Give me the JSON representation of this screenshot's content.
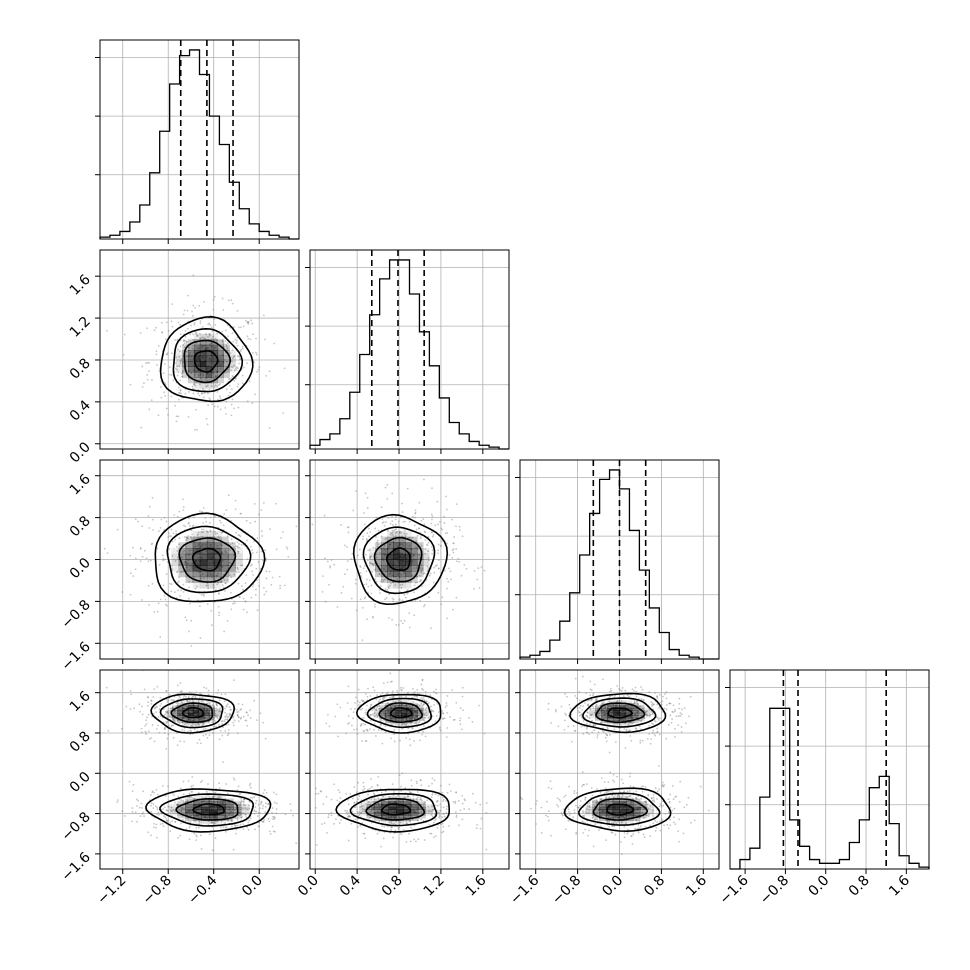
{
  "chart_data": {
    "type": "corner",
    "parameters": [
      {
        "index": 0,
        "range": [
          -1.4,
          0.35
        ],
        "quantiles": [
          -0.69,
          -0.46,
          -0.23
        ],
        "ticks": [
          -1.2,
          -0.8,
          -0.4,
          0.0
        ],
        "tick_labels": [
          "−1.2",
          "−0.8",
          "−0.4",
          "0.0"
        ]
      },
      {
        "index": 1,
        "range": [
          -0.05,
          1.85
        ],
        "quantiles": [
          0.54,
          0.79,
          1.04
        ],
        "ticks": [
          0.0,
          0.4,
          0.8,
          1.2,
          1.6
        ],
        "tick_labels": [
          "0.0",
          "0.4",
          "0.8",
          "1.2",
          "1.6"
        ]
      },
      {
        "index": 2,
        "range": [
          -1.9,
          1.9
        ],
        "quantiles": [
          -0.5,
          0.0,
          0.5
        ],
        "ticks": [
          -1.6,
          -0.8,
          0.0,
          0.8,
          1.6
        ],
        "tick_labels": [
          "−1.6",
          "−0.8",
          "0.0",
          "0.8",
          "1.6"
        ]
      },
      {
        "index": 3,
        "range": [
          -1.9,
          2.05
        ],
        "quantiles": [
          -0.84,
          -0.55,
          1.2
        ],
        "ticks": [
          -1.6,
          -0.8,
          0.0,
          0.8,
          1.6
        ],
        "tick_labels": [
          "−1.6",
          "−0.8",
          "0.0",
          "0.8",
          "1.6"
        ]
      }
    ],
    "histograms": [
      {
        "param": 0,
        "bins": 20,
        "counts": [
          0.01,
          0.02,
          0.04,
          0.09,
          0.18,
          0.35,
          0.57,
          0.82,
          0.97,
          1.0,
          0.87,
          0.65,
          0.5,
          0.3,
          0.16,
          0.08,
          0.04,
          0.02,
          0.01,
          0.0
        ]
      },
      {
        "param": 1,
        "bins": 20,
        "counts": [
          0.02,
          0.05,
          0.08,
          0.16,
          0.3,
          0.5,
          0.71,
          0.9,
          1.0,
          1.0,
          0.82,
          0.62,
          0.44,
          0.27,
          0.14,
          0.08,
          0.04,
          0.02,
          0.01,
          0.0
        ]
      },
      {
        "param": 2,
        "bins": 20,
        "counts": [
          0.01,
          0.02,
          0.04,
          0.1,
          0.2,
          0.35,
          0.55,
          0.77,
          0.95,
          1.0,
          0.9,
          0.68,
          0.47,
          0.27,
          0.14,
          0.05,
          0.02,
          0.01,
          0.0,
          0.0
        ]
      },
      {
        "param": 3,
        "bins": 20,
        "counts": [
          0.0,
          0.05,
          0.11,
          0.38,
          0.85,
          0.85,
          0.26,
          0.12,
          0.05,
          0.03,
          0.03,
          0.05,
          0.14,
          0.26,
          0.43,
          0.49,
          0.24,
          0.07,
          0.03,
          0.01
        ]
      }
    ],
    "pairs": [
      {
        "x": 0,
        "y": 1,
        "blobs": [
          {
            "cx": -0.47,
            "cy": 0.79,
            "sx": 0.2,
            "sy": 0.2
          }
        ]
      },
      {
        "x": 0,
        "y": 2,
        "blobs": [
          {
            "cx": -0.46,
            "cy": 0.0,
            "sx": 0.24,
            "sy": 0.42
          }
        ]
      },
      {
        "x": 1,
        "y": 2,
        "blobs": [
          {
            "cx": 0.8,
            "cy": 0.0,
            "sx": 0.22,
            "sy": 0.42
          }
        ]
      },
      {
        "x": 0,
        "y": 3,
        "blobs": [
          {
            "cx": -0.58,
            "cy": 1.2,
            "sx": 0.18,
            "sy": 0.19
          },
          {
            "cx": -0.44,
            "cy": -0.72,
            "sx": 0.27,
            "sy": 0.21
          }
        ]
      },
      {
        "x": 1,
        "y": 3,
        "blobs": [
          {
            "cx": 0.82,
            "cy": 1.2,
            "sx": 0.2,
            "sy": 0.19
          },
          {
            "cx": 0.77,
            "cy": -0.72,
            "sx": 0.27,
            "sy": 0.21
          }
        ]
      },
      {
        "x": 2,
        "y": 3,
        "blobs": [
          {
            "cx": 0.0,
            "cy": 1.2,
            "sx": 0.45,
            "sy": 0.19
          },
          {
            "cx": 0.0,
            "cy": -0.72,
            "sx": 0.5,
            "sy": 0.21
          }
        ]
      }
    ],
    "contour_levels": [
      "0.5σ",
      "1σ",
      "1.5σ",
      "2σ"
    ],
    "grid": true,
    "colors": {
      "line": "#000000",
      "grid": "#b0b0b0",
      "points": "#808080",
      "shade": "#000000"
    }
  }
}
